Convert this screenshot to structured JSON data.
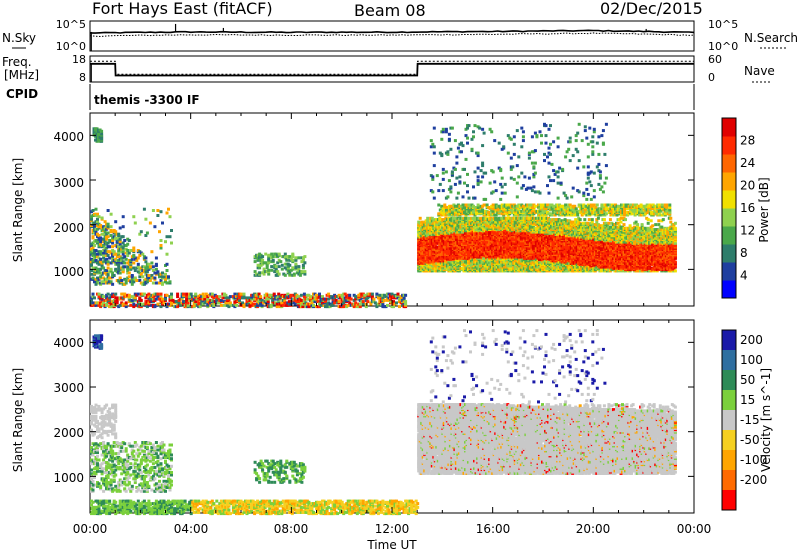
{
  "header": {
    "radar": "Fort Hays East (fitACF)",
    "beam": "Beam 08",
    "date": "02/Dec/2015"
  },
  "sky_panel": {
    "left_label": "N.Sky",
    "right_label": "N.Search",
    "left_ticks": [
      "10^5",
      "10^0"
    ],
    "right_ticks": [
      "10^5",
      "10^0"
    ]
  },
  "freq_panel": {
    "left_label_1": "Freq.",
    "left_label_2": "[MHz]",
    "right_label": "Nave",
    "left_ticks": [
      "18",
      "8"
    ],
    "right_ticks": [
      "60",
      "0"
    ]
  },
  "cpid_panel": {
    "label": "CPID",
    "program": "themis -3300 IF"
  },
  "x_axis": {
    "label": "Time UT",
    "ticks": [
      "00:00",
      "04:00",
      "08:00",
      "12:00",
      "16:00",
      "20:00",
      "00:00"
    ]
  },
  "power_panel": {
    "ylabel": "Slant Range [km]",
    "yticks": [
      "4000",
      "3000",
      "2000",
      "1000"
    ],
    "colorbar_label": "Power [dB]",
    "colorbar_ticks": [
      "28",
      "24",
      "20",
      "16",
      "12",
      "8",
      "4"
    ],
    "colors": [
      "#0000ff",
      "#1f3f9f",
      "#2e7d6b",
      "#4aa84a",
      "#8fd14f",
      "#f0e000",
      "#ffa500",
      "#ff6600",
      "#ff2a00",
      "#e00000"
    ]
  },
  "velocity_panel": {
    "ylabel": "Slant Range [km]",
    "yticks": [
      "4000",
      "3000",
      "2000",
      "1000"
    ],
    "colorbar_label": "Velocity [m s^-1]",
    "colorbar_ticks": [
      "200",
      "100",
      "50",
      "15",
      "-15",
      "-50",
      "-100",
      "-200"
    ],
    "colors": [
      "#1a1aa8",
      "#2f6fa0",
      "#2e8b57",
      "#7bd03c",
      "#c8c8c8",
      "#f5d020",
      "#ffa500",
      "#ff6a00",
      "#ff0000"
    ]
  },
  "chart_data": [
    {
      "type": "line",
      "title": "N.Sky / N.Search",
      "x": [
        "00:00",
        "04:00",
        "08:00",
        "12:00",
        "16:00",
        "20:00",
        "24:00"
      ],
      "series": [
        {
          "name": "N.Sky",
          "values": [
            1000,
            1500,
            1300,
            1400,
            1800,
            2500,
            1200
          ]
        },
        {
          "name": "N.Search",
          "values": [
            300,
            500,
            450,
            450,
            600,
            900,
            400
          ]
        }
      ],
      "yscale": "log",
      "ylim": [
        1,
        100000
      ]
    },
    {
      "type": "line",
      "title": "Freq. [MHz] / Nave",
      "x": [
        "00:00",
        "01:00",
        "01:01",
        "13:00",
        "13:01",
        "24:00"
      ],
      "series": [
        {
          "name": "Freq.",
          "values": [
            15,
            15,
            10.5,
            10.5,
            15,
            15
          ]
        },
        {
          "name": "Nave",
          "values": [
            16,
            16,
            11,
            11,
            16,
            16
          ]
        }
      ],
      "ylim": [
        8,
        18
      ]
    },
    {
      "type": "heatmap",
      "title": "Power [dB]",
      "xlabel": "Time UT",
      "ylabel": "Slant Range [km]",
      "xlim": [
        "00:00",
        "24:00"
      ],
      "ylim": [
        180,
        4500
      ],
      "colorbar": [
        4,
        8,
        12,
        16,
        20,
        24,
        28
      ],
      "features": [
        {
          "time_start": "13:00",
          "time_end": "23:00",
          "range_start": 1100,
          "range_end": 2300,
          "power": 28
        },
        {
          "time_start": "14:00",
          "time_end": "23:00",
          "range_start": 2200,
          "range_end": 2500,
          "power": 16
        },
        {
          "time_start": "00:00",
          "time_end": "03:00",
          "range_start": 700,
          "range_end": 2400,
          "power": 12
        },
        {
          "time_start": "00:00",
          "time_end": "12:00",
          "range_start": 200,
          "range_end": 500,
          "power": 20
        }
      ]
    },
    {
      "type": "heatmap",
      "title": "Velocity [m s^-1]",
      "xlabel": "Time UT",
      "ylabel": "Slant Range [km]",
      "xlim": [
        "00:00",
        "24:00"
      ],
      "ylim": [
        180,
        4500
      ],
      "colorbar": [
        -200,
        -100,
        -50,
        -15,
        15,
        50,
        100,
        200
      ],
      "features": [
        {
          "time_start": "13:00",
          "time_end": "23:00",
          "range_start": 1100,
          "range_end": 2600,
          "velocity": 0
        },
        {
          "time_start": "00:00",
          "time_end": "03:00",
          "range_start": 700,
          "range_end": 1800,
          "velocity": 60
        },
        {
          "time_start": "00:00",
          "time_end": "13:00",
          "range_start": 200,
          "range_end": 500,
          "velocity": -40
        },
        {
          "time_start": "00:00",
          "time_end": "01:00",
          "range_start": 1900,
          "range_end": 2600,
          "velocity": 0
        }
      ]
    }
  ]
}
